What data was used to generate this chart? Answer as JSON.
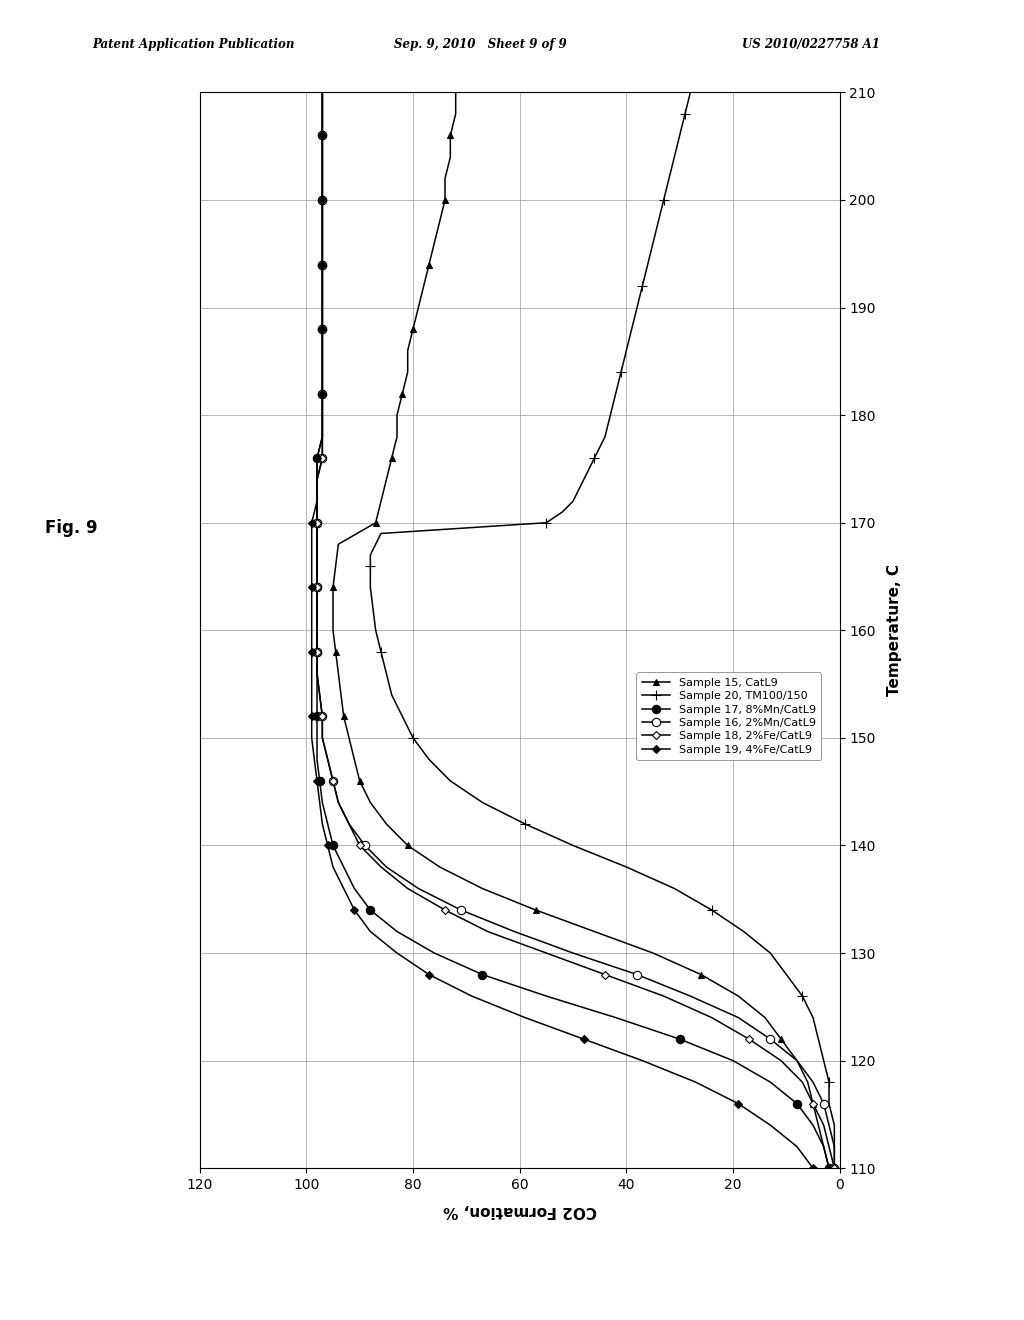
{
  "header_left": "Patent Application Publication",
  "header_mid": "Sep. 9, 2010   Sheet 9 of 9",
  "header_right": "US 2010/0227758 A1",
  "fig_label": "Fig. 9",
  "xlabel_temp": "Temperature, C",
  "ylabel_co2": "CO2 Formation, %",
  "background_color": "#ffffff",
  "series": [
    {
      "label": "Sample 15, CatL9",
      "color": "#000000",
      "marker": "^",
      "marker_filled": true,
      "markersize": 5,
      "markevery": 3,
      "temp": [
        110,
        112,
        114,
        116,
        118,
        120,
        122,
        124,
        126,
        128,
        130,
        132,
        134,
        136,
        138,
        140,
        142,
        144,
        146,
        148,
        150,
        152,
        154,
        156,
        158,
        160,
        162,
        164,
        166,
        168,
        170,
        172,
        174,
        176,
        178,
        180,
        182,
        184,
        186,
        188,
        190,
        192,
        194,
        196,
        198,
        200,
        202,
        204,
        206,
        208,
        210
      ],
      "values": [
        2,
        3,
        4,
        5,
        6,
        8,
        11,
        14,
        19,
        26,
        35,
        46,
        57,
        67,
        75,
        81,
        85,
        88,
        90,
        91,
        92,
        93,
        93.5,
        94,
        94.5,
        95,
        95,
        95,
        94.5,
        94,
        87,
        86,
        85,
        84,
        83,
        83,
        82,
        81,
        81,
        80,
        79,
        78,
        77,
        76,
        75,
        74,
        74,
        73,
        73,
        72,
        72
      ]
    },
    {
      "label": "Sample 20, TM100/150",
      "color": "#000000",
      "marker": "+",
      "marker_filled": true,
      "markersize": 7,
      "markevery": 4,
      "temp": [
        110,
        112,
        114,
        116,
        118,
        120,
        122,
        124,
        126,
        128,
        130,
        132,
        134,
        136,
        138,
        140,
        142,
        144,
        146,
        148,
        150,
        152,
        154,
        156,
        158,
        160,
        162,
        164,
        166,
        167,
        168,
        169,
        170,
        171,
        172,
        174,
        176,
        178,
        180,
        182,
        184,
        186,
        188,
        190,
        192,
        194,
        196,
        198,
        200,
        202,
        204,
        206,
        208,
        210
      ],
      "values": [
        1,
        1,
        1,
        2,
        2,
        3,
        4,
        5,
        7,
        10,
        13,
        18,
        24,
        31,
        40,
        50,
        59,
        67,
        73,
        77,
        80,
        82,
        84,
        85,
        86,
        87,
        87.5,
        88,
        88,
        88,
        87,
        86,
        55,
        52,
        50,
        48,
        46,
        44,
        43,
        42,
        41,
        40,
        39,
        38,
        37,
        36,
        35,
        34,
        33,
        32,
        31,
        30,
        29,
        28
      ]
    },
    {
      "label": "Sample 17, 8%Mn/CatL9",
      "color": "#000000",
      "marker": "o",
      "marker_filled": true,
      "markersize": 6,
      "markevery": 3,
      "temp": [
        110,
        112,
        114,
        116,
        118,
        120,
        122,
        124,
        126,
        128,
        130,
        132,
        134,
        136,
        138,
        140,
        142,
        144,
        146,
        148,
        150,
        152,
        154,
        156,
        158,
        160,
        162,
        164,
        166,
        168,
        170,
        172,
        174,
        176,
        178,
        180,
        182,
        184,
        186,
        188,
        190,
        192,
        194,
        196,
        198,
        200,
        202,
        204,
        206,
        208,
        210
      ],
      "values": [
        2,
        3,
        5,
        8,
        13,
        20,
        30,
        42,
        55,
        67,
        76,
        83,
        88,
        91,
        93,
        95,
        96,
        97,
        97.5,
        98,
        98,
        98,
        98,
        98,
        98,
        98,
        98,
        98,
        98,
        98,
        98,
        98,
        98,
        98,
        97,
        97,
        97,
        97,
        97,
        97,
        97,
        97,
        97,
        97,
        97,
        97,
        97,
        97,
        97,
        97,
        97
      ]
    },
    {
      "label": "Sample 16, 2%Mn/CatL9",
      "color": "#000000",
      "marker": "o",
      "marker_filled": false,
      "markersize": 6,
      "markevery": 3,
      "temp": [
        110,
        112,
        114,
        116,
        118,
        120,
        122,
        124,
        126,
        128,
        130,
        132,
        134,
        136,
        138,
        140,
        142,
        144,
        146,
        148,
        150,
        152,
        154,
        156,
        158,
        160,
        162,
        164,
        166,
        168,
        170,
        172,
        174,
        176,
        178,
        180,
        182,
        184,
        186,
        188,
        190,
        192,
        194,
        196,
        198,
        200,
        202,
        204,
        206,
        208,
        210
      ],
      "values": [
        1,
        1,
        2,
        3,
        5,
        8,
        13,
        19,
        28,
        38,
        50,
        61,
        71,
        79,
        85,
        89,
        92,
        94,
        95,
        96,
        97,
        97,
        97.5,
        98,
        98,
        98,
        98,
        98,
        98,
        98,
        98,
        98,
        98,
        97,
        97,
        97,
        97,
        97,
        97,
        97,
        97,
        97,
        97,
        97,
        97,
        97,
        97,
        97,
        97,
        97,
        97
      ]
    },
    {
      "label": "Sample 18, 2%Fe/CatL9",
      "color": "#000000",
      "marker": "D",
      "marker_filled": false,
      "markersize": 4,
      "markevery": 3,
      "temp": [
        110,
        112,
        114,
        116,
        118,
        120,
        122,
        124,
        126,
        128,
        130,
        132,
        134,
        136,
        138,
        140,
        142,
        144,
        146,
        148,
        150,
        152,
        154,
        156,
        158,
        160,
        162,
        164,
        166,
        168,
        170,
        172,
        174,
        176,
        178,
        180,
        182,
        184,
        186,
        188,
        190,
        192,
        194,
        196,
        198,
        200,
        202,
        204,
        206,
        208,
        210
      ],
      "values": [
        1,
        2,
        3,
        5,
        7,
        11,
        17,
        24,
        33,
        44,
        55,
        66,
        74,
        81,
        86,
        90,
        92,
        94,
        95,
        96,
        97,
        97,
        97.5,
        98,
        98,
        98,
        98,
        98,
        98,
        98,
        98,
        98,
        98,
        97,
        97,
        97,
        97,
        97,
        97,
        97,
        97,
        97,
        97,
        97,
        97,
        97,
        97,
        97,
        97,
        97,
        97
      ]
    },
    {
      "label": "Sample 19, 4%Fe/CatL9",
      "color": "#000000",
      "marker": "D",
      "marker_filled": true,
      "markersize": 4,
      "markevery": 3,
      "temp": [
        110,
        112,
        114,
        116,
        118,
        120,
        122,
        124,
        126,
        128,
        130,
        132,
        134,
        136,
        138,
        140,
        142,
        144,
        146,
        148,
        150,
        152,
        154,
        156,
        158,
        160,
        162,
        164,
        166,
        168,
        170,
        172,
        174,
        176,
        178,
        180,
        182,
        184,
        186,
        188,
        190,
        192,
        194,
        196,
        198,
        200,
        202,
        204,
        206,
        208,
        210
      ],
      "values": [
        5,
        8,
        13,
        19,
        27,
        37,
        48,
        59,
        69,
        77,
        83,
        88,
        91,
        93,
        95,
        96,
        97,
        97.5,
        98,
        98.5,
        99,
        99,
        99,
        99,
        99,
        99,
        99,
        99,
        99,
        99,
        99,
        98,
        98,
        98,
        97,
        97,
        97,
        97,
        97,
        97,
        97,
        97,
        97,
        97,
        97,
        97,
        97,
        97,
        97,
        97,
        97
      ]
    }
  ]
}
